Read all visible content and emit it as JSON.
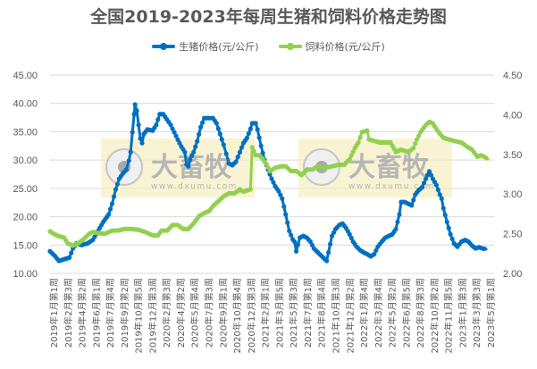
{
  "chart_data": {
    "type": "line",
    "title": "全国2019-2023年每周生猪和饲料价格走势图",
    "xlabel": "",
    "ylabel": "",
    "ylim": [
      10,
      45
    ],
    "y2lim": [
      2.0,
      4.5
    ],
    "grid": true,
    "legend_position": "top",
    "left_ticks": [
      "45.00",
      "40.00",
      "35.00",
      "30.00",
      "25.00",
      "20.00",
      "15.00",
      "10.00"
    ],
    "right_ticks": [
      "4.50",
      "4.00",
      "3.50",
      "3.00",
      "2.50",
      "2.00"
    ],
    "categories": [
      "2019年1月第1周",
      "2019年2月第3周",
      "2019年4月第2周",
      "2019年6月第1周",
      "2019年7月第4周",
      "2019年9月第2周",
      "2019年10月第5周",
      "2019年12月第3周",
      "2020年2月第3周",
      "2020年4月第2周",
      "2020年5月第4周",
      "2020年7月第3周",
      "2020年9月第1周",
      "2020年10月第4周",
      "2020年12月第3周",
      "2021年2月第1周",
      "2021年3月第5周",
      "2021年5月第3周",
      "2021年7月第1周",
      "2021年8月第4周",
      "2021年10月第3周",
      "2021年12月第2周",
      "2022年1月第4周",
      "2022年3月第4周",
      "2022年5月第2周",
      "2022年6月第5周",
      "2022年8月第3周",
      "2022年10月第2周",
      "2022年11月第5周",
      "2023年1月第3周",
      "2023年3月第3周",
      "2023年5月第1周"
    ],
    "series": [
      {
        "name": "生猪价格(元/公斤)",
        "axis": "left",
        "color": "#0070C0",
        "points": [
          [
            0,
            13.9
          ],
          [
            0.012,
            13.0
          ],
          [
            0.02,
            12.2
          ],
          [
            0.032,
            12.5
          ],
          [
            0.044,
            12.8
          ],
          [
            0.052,
            14.4
          ],
          [
            0.06,
            15.3
          ],
          [
            0.072,
            15.0
          ],
          [
            0.085,
            15.3
          ],
          [
            0.097,
            15.9
          ],
          [
            0.109,
            17.5
          ],
          [
            0.121,
            19.1
          ],
          [
            0.133,
            20.4
          ],
          [
            0.141,
            22.3
          ],
          [
            0.149,
            24.8
          ],
          [
            0.157,
            26.7
          ],
          [
            0.165,
            27.6
          ],
          [
            0.173,
            28.3
          ],
          [
            0.179,
            29.9
          ],
          [
            0.183,
            31.4
          ],
          [
            0.187,
            34.9
          ],
          [
            0.191,
            38.1
          ],
          [
            0.193,
            39.8
          ],
          [
            0.197,
            38.7
          ],
          [
            0.201,
            36.2
          ],
          [
            0.205,
            33.8
          ],
          [
            0.209,
            33.0
          ],
          [
            0.213,
            34.6
          ],
          [
            0.221,
            35.4
          ],
          [
            0.233,
            35.2
          ],
          [
            0.241,
            36.2
          ],
          [
            0.249,
            38.1
          ],
          [
            0.257,
            38.1
          ],
          [
            0.265,
            37.2
          ],
          [
            0.274,
            36.2
          ],
          [
            0.282,
            34.9
          ],
          [
            0.29,
            33.6
          ],
          [
            0.298,
            32.4
          ],
          [
            0.306,
            31.4
          ],
          [
            0.31,
            29.2
          ],
          [
            0.314,
            28.9
          ],
          [
            0.318,
            30.1
          ],
          [
            0.326,
            31.4
          ],
          [
            0.334,
            33.3
          ],
          [
            0.342,
            35.8
          ],
          [
            0.35,
            37.4
          ],
          [
            0.362,
            37.4
          ],
          [
            0.37,
            37.4
          ],
          [
            0.378,
            36.5
          ],
          [
            0.386,
            34.6
          ],
          [
            0.394,
            32.7
          ],
          [
            0.4,
            31.1
          ],
          [
            0.406,
            29.4
          ],
          [
            0.414,
            29.1
          ],
          [
            0.422,
            29.7
          ],
          [
            0.431,
            31.4
          ],
          [
            0.439,
            33.0
          ],
          [
            0.447,
            33.9
          ],
          [
            0.455,
            35.5
          ],
          [
            0.459,
            36.5
          ],
          [
            0.467,
            36.5
          ],
          [
            0.471,
            35.4
          ],
          [
            0.479,
            32.5
          ],
          [
            0.487,
            30.0
          ],
          [
            0.495,
            28.3
          ],
          [
            0.503,
            26.7
          ],
          [
            0.511,
            25.4
          ],
          [
            0.519,
            24.5
          ],
          [
            0.527,
            23.2
          ],
          [
            0.535,
            20.4
          ],
          [
            0.543,
            17.5
          ],
          [
            0.551,
            16.0
          ],
          [
            0.555,
            15.6
          ],
          [
            0.559,
            13.9
          ],
          [
            0.567,
            16.3
          ],
          [
            0.575,
            16.6
          ],
          [
            0.583,
            16.3
          ],
          [
            0.591,
            15.6
          ],
          [
            0.599,
            14.4
          ],
          [
            0.612,
            13.4
          ],
          [
            0.624,
            12.5
          ],
          [
            0.628,
            12.2
          ],
          [
            0.632,
            13.7
          ],
          [
            0.64,
            16.6
          ],
          [
            0.648,
            17.8
          ],
          [
            0.656,
            18.5
          ],
          [
            0.664,
            18.8
          ],
          [
            0.672,
            18.0
          ],
          [
            0.68,
            16.9
          ],
          [
            0.688,
            15.6
          ],
          [
            0.696,
            14.7
          ],
          [
            0.704,
            14.1
          ],
          [
            0.712,
            13.7
          ],
          [
            0.72,
            13.4
          ],
          [
            0.728,
            13.0
          ],
          [
            0.736,
            13.4
          ],
          [
            0.744,
            14.7
          ],
          [
            0.753,
            15.6
          ],
          [
            0.761,
            16.3
          ],
          [
            0.769,
            16.6
          ],
          [
            0.777,
            16.9
          ],
          [
            0.785,
            17.8
          ],
          [
            0.793,
            20.4
          ],
          [
            0.797,
            22.6
          ],
          [
            0.805,
            22.6
          ],
          [
            0.813,
            22.3
          ],
          [
            0.821,
            22.0
          ],
          [
            0.829,
            23.9
          ],
          [
            0.837,
            24.7
          ],
          [
            0.845,
            25.2
          ],
          [
            0.853,
            26.7
          ],
          [
            0.861,
            28.0
          ],
          [
            0.869,
            26.7
          ],
          [
            0.877,
            25.6
          ],
          [
            0.885,
            23.9
          ],
          [
            0.889,
            23.2
          ],
          [
            0.893,
            21.5
          ],
          [
            0.901,
            19.1
          ],
          [
            0.909,
            16.9
          ],
          [
            0.917,
            15.3
          ],
          [
            0.925,
            14.7
          ],
          [
            0.934,
            15.6
          ],
          [
            0.942,
            15.9
          ],
          [
            0.95,
            15.6
          ],
          [
            0.958,
            14.9
          ],
          [
            0.966,
            14.4
          ],
          [
            0.974,
            14.6
          ],
          [
            0.982,
            14.4
          ],
          [
            0.99,
            14.3
          ]
        ]
      },
      {
        "name": "饲料价格(元/公斤)",
        "axis": "right",
        "color": "#92D050",
        "points": [
          [
            0,
            2.53
          ],
          [
            0.008,
            2.5
          ],
          [
            0.02,
            2.47
          ],
          [
            0.032,
            2.45
          ],
          [
            0.04,
            2.38
          ],
          [
            0.052,
            2.35
          ],
          [
            0.064,
            2.38
          ],
          [
            0.076,
            2.43
          ],
          [
            0.089,
            2.5
          ],
          [
            0.097,
            2.52
          ],
          [
            0.109,
            2.51
          ],
          [
            0.125,
            2.5
          ],
          [
            0.141,
            2.54
          ],
          [
            0.153,
            2.54
          ],
          [
            0.169,
            2.56
          ],
          [
            0.185,
            2.56
          ],
          [
            0.201,
            2.55
          ],
          [
            0.217,
            2.52
          ],
          [
            0.233,
            2.48
          ],
          [
            0.245,
            2.48
          ],
          [
            0.253,
            2.54
          ],
          [
            0.266,
            2.54
          ],
          [
            0.278,
            2.61
          ],
          [
            0.29,
            2.61
          ],
          [
            0.302,
            2.56
          ],
          [
            0.314,
            2.56
          ],
          [
            0.326,
            2.63
          ],
          [
            0.338,
            2.72
          ],
          [
            0.35,
            2.76
          ],
          [
            0.362,
            2.79
          ],
          [
            0.37,
            2.85
          ],
          [
            0.382,
            2.91
          ],
          [
            0.394,
            2.97
          ],
          [
            0.406,
            3.01
          ],
          [
            0.419,
            3.01
          ],
          [
            0.431,
            3.06
          ],
          [
            0.439,
            3.03
          ],
          [
            0.455,
            3.06
          ],
          [
            0.459,
            3.59
          ],
          [
            0.467,
            3.49
          ],
          [
            0.475,
            3.49
          ],
          [
            0.483,
            3.44
          ],
          [
            0.491,
            3.38
          ],
          [
            0.499,
            3.29
          ],
          [
            0.511,
            3.33
          ],
          [
            0.523,
            3.35
          ],
          [
            0.535,
            3.35
          ],
          [
            0.547,
            3.29
          ],
          [
            0.559,
            3.29
          ],
          [
            0.571,
            3.24
          ],
          [
            0.583,
            3.31
          ],
          [
            0.596,
            3.31
          ],
          [
            0.608,
            3.35
          ],
          [
            0.624,
            3.33
          ],
          [
            0.64,
            3.35
          ],
          [
            0.656,
            3.37
          ],
          [
            0.668,
            3.37
          ],
          [
            0.68,
            3.44
          ],
          [
            0.692,
            3.58
          ],
          [
            0.7,
            3.65
          ],
          [
            0.708,
            3.78
          ],
          [
            0.72,
            3.8
          ],
          [
            0.724,
            3.69
          ],
          [
            0.736,
            3.67
          ],
          [
            0.749,
            3.65
          ],
          [
            0.761,
            3.65
          ],
          [
            0.773,
            3.65
          ],
          [
            0.785,
            3.53
          ],
          [
            0.797,
            3.56
          ],
          [
            0.813,
            3.53
          ],
          [
            0.825,
            3.58
          ],
          [
            0.833,
            3.69
          ],
          [
            0.841,
            3.78
          ],
          [
            0.853,
            3.87
          ],
          [
            0.861,
            3.91
          ],
          [
            0.869,
            3.89
          ],
          [
            0.877,
            3.82
          ],
          [
            0.885,
            3.76
          ],
          [
            0.893,
            3.71
          ],
          [
            0.905,
            3.69
          ],
          [
            0.917,
            3.67
          ],
          [
            0.934,
            3.65
          ],
          [
            0.946,
            3.6
          ],
          [
            0.958,
            3.56
          ],
          [
            0.97,
            3.47
          ],
          [
            0.978,
            3.49
          ],
          [
            0.986,
            3.47
          ],
          [
            0.994,
            3.44
          ]
        ]
      }
    ]
  },
  "legend": [
    {
      "label": "生猪价格(元/公斤)",
      "color": "#0070C0"
    },
    {
      "label": "饲料价格(元/公斤)",
      "color": "#92D050"
    }
  ],
  "watermark": {
    "text": "大畜牧",
    "url_text": "www.dxumu.com"
  }
}
